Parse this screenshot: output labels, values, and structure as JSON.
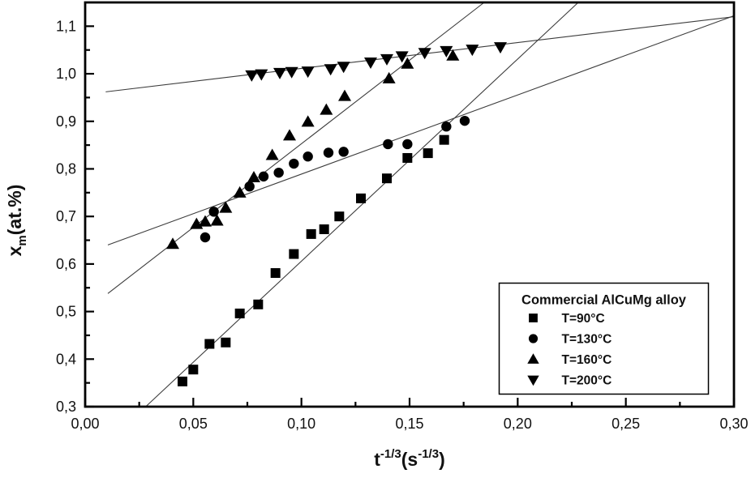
{
  "figure": {
    "background": "#ffffff",
    "axis_color": "#000000",
    "marker_color": "#000000",
    "fit_line_color": "#3c3c3c"
  },
  "chart_data": {
    "type": "scatter",
    "title": "",
    "xlabel": "t^-1/3(s^-1/3)",
    "ylabel": "x_m(at.%)",
    "xlabel_parts": [
      {
        "t": "t"
      },
      {
        "sup": "-1/3"
      },
      {
        "t": "(s"
      },
      {
        "sup": "-1/3"
      },
      {
        "t": ")"
      }
    ],
    "ylabel_parts": [
      {
        "t": "x"
      },
      {
        "sub": "m"
      },
      {
        "t": "(at.%)"
      }
    ],
    "xlim": [
      0.0,
      0.3
    ],
    "ylim": [
      0.3,
      1.15
    ],
    "grid": false,
    "x_ticks": {
      "values": [
        0.0,
        0.05,
        0.1,
        0.15,
        0.2,
        0.25,
        0.3
      ],
      "labels": [
        "0,00",
        "0,05",
        "0,10",
        "0,15",
        "0,20",
        "0,25",
        "0,30"
      ],
      "minor_step": 0.025
    },
    "y_ticks": {
      "values": [
        0.3,
        0.4,
        0.5,
        0.6,
        0.7,
        0.8,
        0.9,
        1.0,
        1.1
      ],
      "labels": [
        "0,3",
        "0,4",
        "0,5",
        "0,6",
        "0,7",
        "0,8",
        "0,9",
        "1,0",
        "1,1"
      ],
      "minor_step": 0.05
    },
    "legend": {
      "title": "Commercial AlCuMg alloy",
      "position": "lower-right",
      "entries": [
        {
          "label": "T=90°C",
          "marker": "square"
        },
        {
          "label": "T=130°C",
          "marker": "circle"
        },
        {
          "label": "T=160°C",
          "marker": "triangle-up"
        },
        {
          "label": "T=200°C",
          "marker": "triangle-down"
        }
      ]
    },
    "series": [
      {
        "name": "T=90°C",
        "marker": "square",
        "points": [
          [
            0.045,
            0.353
          ],
          [
            0.05,
            0.378
          ],
          [
            0.0575,
            0.432
          ],
          [
            0.065,
            0.435
          ],
          [
            0.0715,
            0.496
          ],
          [
            0.08,
            0.515
          ],
          [
            0.088,
            0.581
          ],
          [
            0.0965,
            0.621
          ],
          [
            0.1045,
            0.663
          ],
          [
            0.1105,
            0.673
          ],
          [
            0.1175,
            0.7
          ],
          [
            0.1275,
            0.738
          ],
          [
            0.1395,
            0.78
          ],
          [
            0.149,
            0.823
          ],
          [
            0.1585,
            0.833
          ],
          [
            0.166,
            0.861
          ]
        ],
        "fit_line": {
          "x1": 0.028,
          "y1": 0.3,
          "x2": 0.228,
          "y2": 1.15
        }
      },
      {
        "name": "T=130°C",
        "marker": "circle",
        "points": [
          [
            0.0555,
            0.656
          ],
          [
            0.0595,
            0.71
          ],
          [
            0.076,
            0.763
          ],
          [
            0.0825,
            0.784
          ],
          [
            0.0895,
            0.792
          ],
          [
            0.0965,
            0.811
          ],
          [
            0.103,
            0.826
          ],
          [
            0.1125,
            0.834
          ],
          [
            0.1195,
            0.836
          ],
          [
            0.14,
            0.852
          ],
          [
            0.149,
            0.852
          ],
          [
            0.167,
            0.889
          ],
          [
            0.1755,
            0.901
          ]
        ],
        "fit_line": {
          "x1": 0.0105,
          "y1": 0.64,
          "x2": 0.3,
          "y2": 1.122
        }
      },
      {
        "name": "T=160°C",
        "marker": "triangle-up",
        "points": [
          [
            0.0405,
            0.642
          ],
          [
            0.0515,
            0.684
          ],
          [
            0.0555,
            0.689
          ],
          [
            0.061,
            0.691
          ],
          [
            0.065,
            0.718
          ],
          [
            0.0715,
            0.75
          ],
          [
            0.078,
            0.782
          ],
          [
            0.0865,
            0.829
          ],
          [
            0.0945,
            0.87
          ],
          [
            0.103,
            0.899
          ],
          [
            0.1115,
            0.924
          ],
          [
            0.12,
            0.953
          ],
          [
            0.1405,
            0.99
          ],
          [
            0.149,
            1.021
          ],
          [
            0.17,
            1.038
          ]
        ],
        "fit_line": {
          "x1": 0.0105,
          "y1": 0.538,
          "x2": 0.1845,
          "y2": 1.15
        }
      },
      {
        "name": "T=200°C",
        "marker": "triangle-down",
        "points": [
          [
            0.077,
            0.997
          ],
          [
            0.0815,
            0.999
          ],
          [
            0.09,
            1.002
          ],
          [
            0.0955,
            1.004
          ],
          [
            0.103,
            1.005
          ],
          [
            0.1135,
            1.01
          ],
          [
            0.1195,
            1.015
          ],
          [
            0.132,
            1.024
          ],
          [
            0.1395,
            1.031
          ],
          [
            0.1465,
            1.037
          ],
          [
            0.157,
            1.044
          ],
          [
            0.167,
            1.048
          ],
          [
            0.179,
            1.051
          ],
          [
            0.192,
            1.056
          ]
        ],
        "fit_line": {
          "x1": 0.0095,
          "y1": 0.962,
          "x2": 0.3,
          "y2": 1.12
        }
      }
    ]
  }
}
